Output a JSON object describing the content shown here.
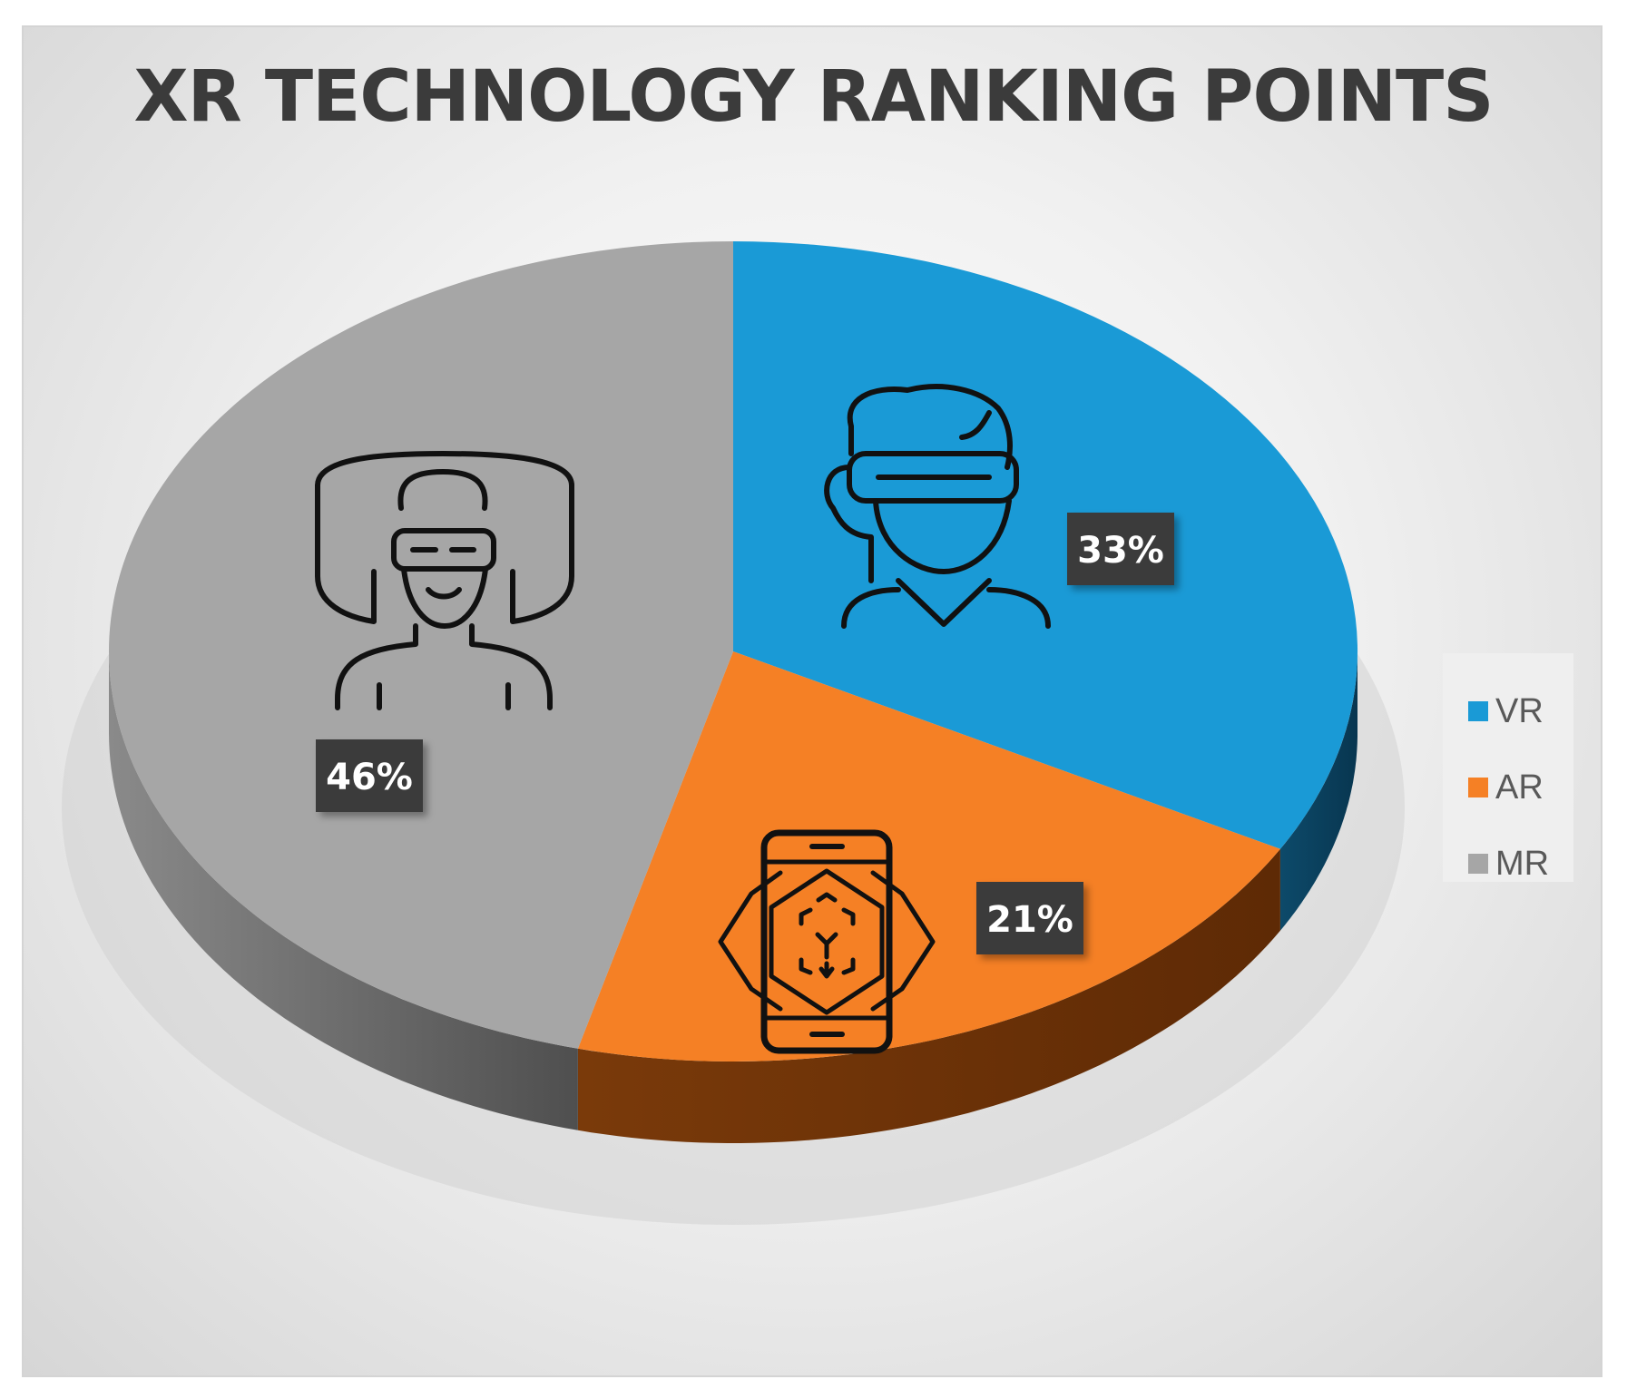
{
  "chart_data": {
    "type": "pie",
    "title": "XR TECHNOLOGY RANKING POINTS",
    "style": "3d",
    "legend_position": "right",
    "slices": [
      {
        "label": "VR",
        "value": 33,
        "value_label": "33%",
        "color": "#1a9ad6",
        "icon": "vr-headset-person-icon"
      },
      {
        "label": "AR",
        "value": 21,
        "value_label": "21%",
        "color": "#f58025",
        "icon": "ar-smartphone-icon"
      },
      {
        "label": "MR",
        "value": 46,
        "value_label": "46%",
        "color": "#a6a6a6",
        "icon": "mixed-reality-person-icon"
      }
    ]
  }
}
